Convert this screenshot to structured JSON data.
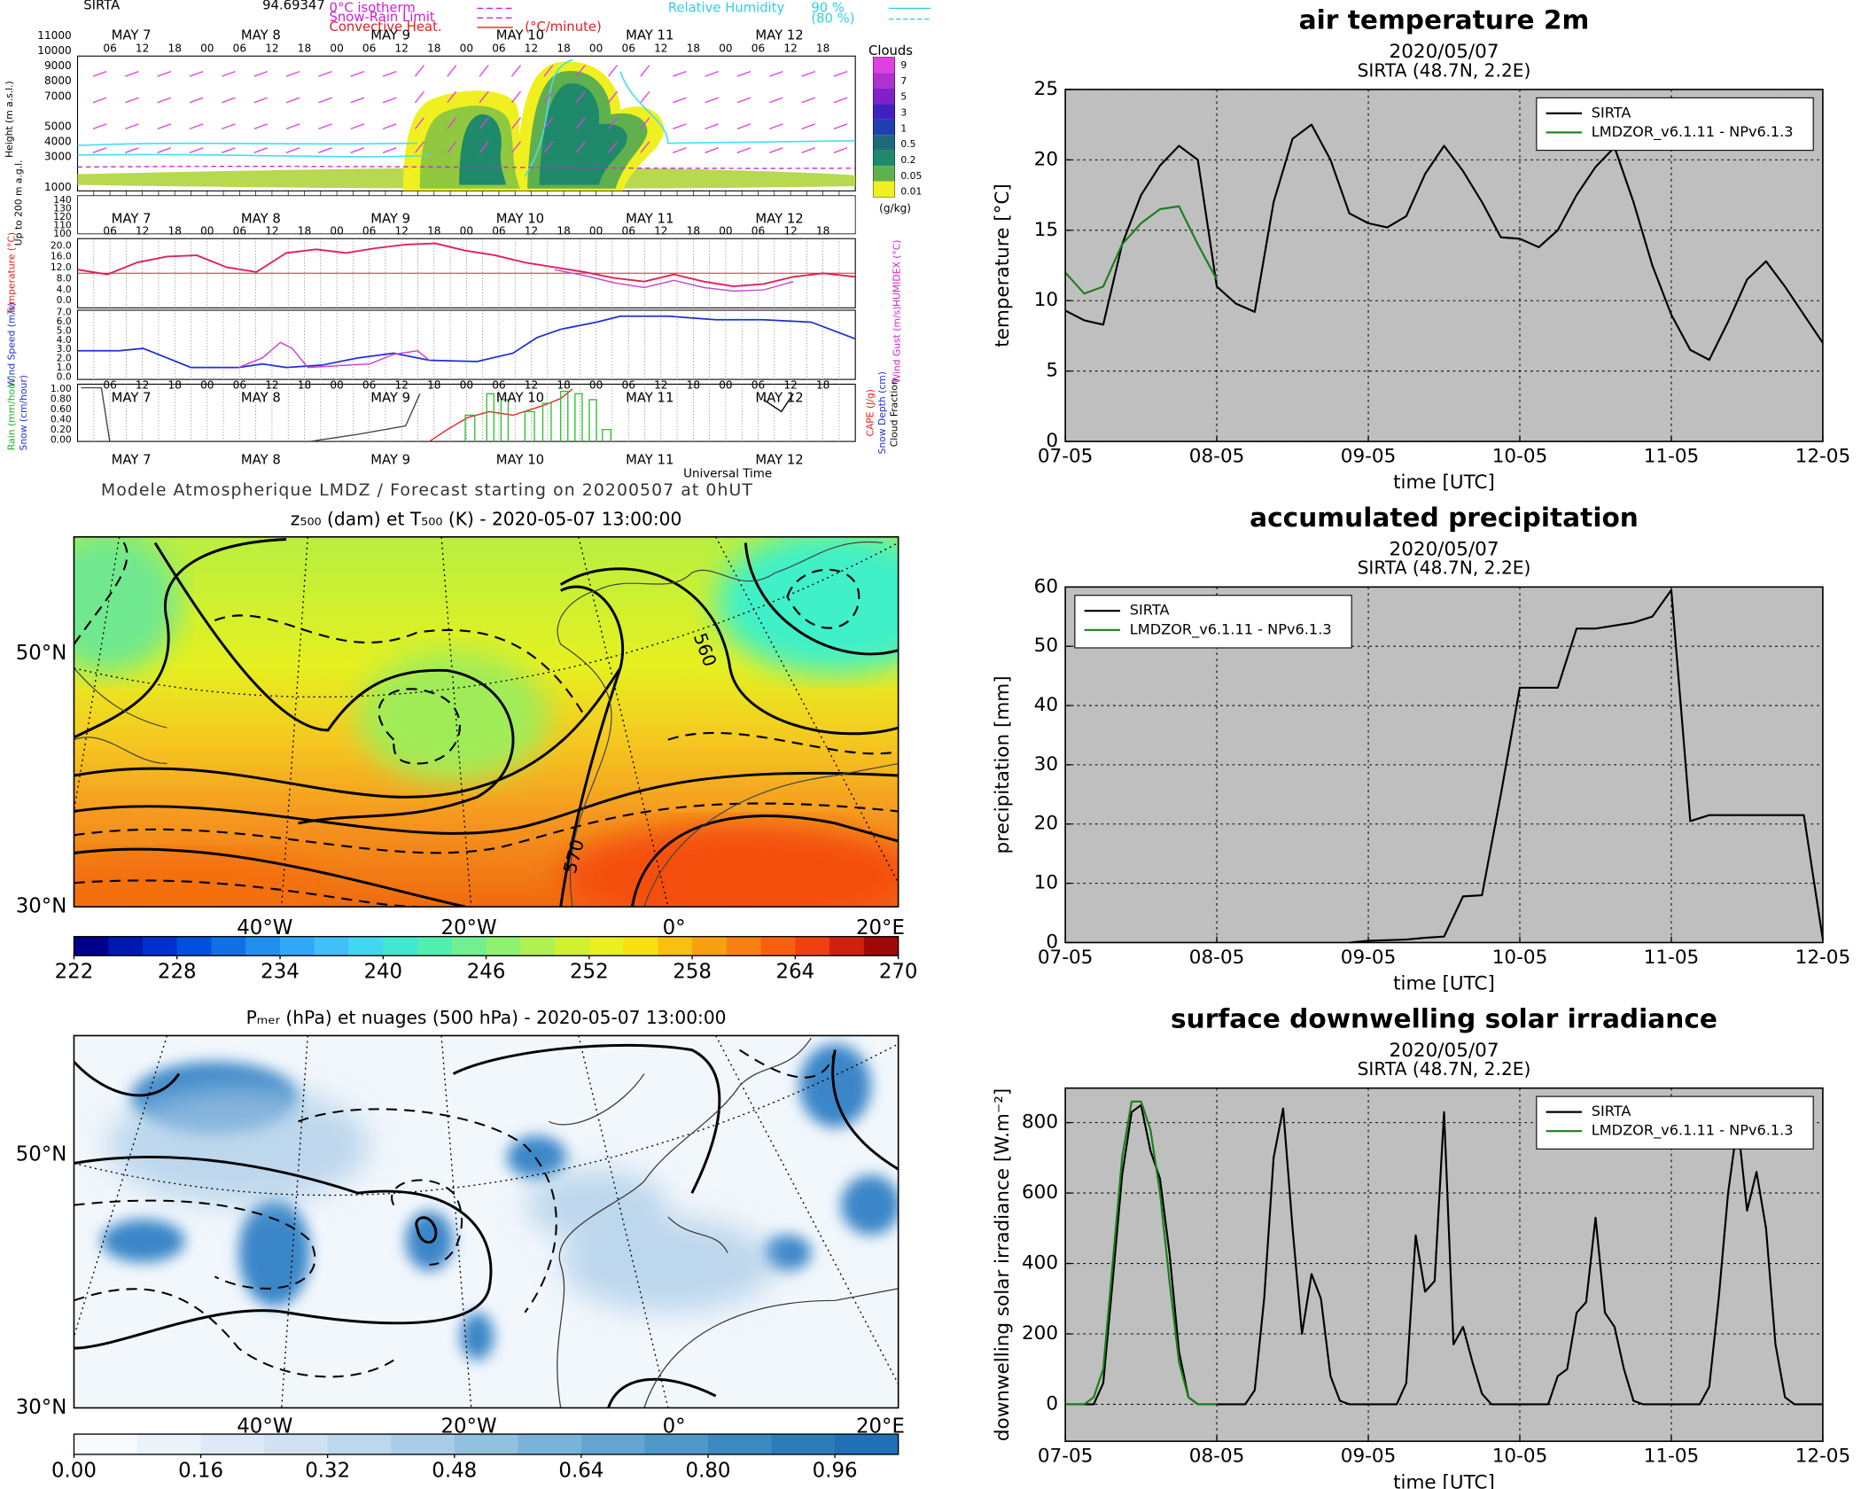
{
  "meteogram": {
    "station": "SIRTA",
    "value": "94.69347",
    "isotherm": "0°C isotherm",
    "snow_rain": "Snow-Rain Limit",
    "convective": "Convective Heat.",
    "convective_unit": "(°C/minute)",
    "humidity": "Relative Humidity",
    "humidity_90": "90 %",
    "humidity_80": "(80 %)",
    "days": [
      "MAY 7",
      "MAY 8",
      "MAY 9",
      "MAY 10",
      "MAY 11",
      "MAY 12"
    ],
    "hours": [
      "06",
      "12",
      "18",
      "00"
    ],
    "height_label": "Height (m a.s.l.)",
    "height_ticks": [
      "11000",
      "10000",
      "9000",
      "8000",
      "7000",
      "5000",
      "4000",
      "3000",
      "1000"
    ],
    "low_label": "Up to 200 m a.g.l.",
    "low_ticks": [
      "140",
      "130",
      "120",
      "110",
      "100"
    ],
    "clouds_title": "Clouds",
    "clouds_ticks": [
      "9",
      "7",
      "5",
      "3",
      "1",
      "0.5",
      "0.2",
      "0.05",
      "0.01"
    ],
    "clouds_unit": "(g/kg)",
    "temp_label": "Temperature (°C)",
    "humidex_label": "HUMIDEX (°C)",
    "temp_ticks": [
      "20.0",
      "16.0",
      "12.0",
      "8.0",
      "4.0",
      "0.0"
    ],
    "wind_label": "Wind Speed (m/s)",
    "gust_label": "Wind Gust (m/s)",
    "wind_ticks": [
      "7.0",
      "6.0",
      "5.0",
      "4.0",
      "3.0",
      "2.0",
      "1.0",
      "0.0"
    ],
    "rain_label": "Rain (mm/hour)",
    "snow_label": "Snow (cm/hour)",
    "cape_label": "CAPE (J/g)",
    "depth_label": "Snow Depth (cm)",
    "cloud_fraction_label": "Cloud Fraction",
    "rain_ticks": [
      "1.00",
      "0.80",
      "0.60",
      "0.40",
      "0.20",
      "0.00"
    ],
    "x_label": "Universal Time",
    "footer": "Modele Atmospherique LMDZ / Forecast starting on 20200507 at 0hUT"
  },
  "maps": [
    {
      "title": "z₅₀₀ (dam) et T₅₀₀ (K) - 2020-05-07 13:00:00",
      "lat_labels": [
        "50°N",
        "30°N"
      ],
      "lon_labels": [
        "40°W",
        "20°W",
        "0°",
        "20°E"
      ],
      "contour_labels": [
        "560",
        "570"
      ],
      "colorbar": {
        "lim": [
          222,
          270
        ],
        "ticks": [
          222,
          228,
          234,
          240,
          246,
          252,
          258,
          264,
          270
        ],
        "colors": [
          "#00008b",
          "#0018b0",
          "#0030d0",
          "#0050e0",
          "#1070e8",
          "#2090f0",
          "#30a8f8",
          "#40c0f8",
          "#40d8f0",
          "#40e8d0",
          "#50f0b0",
          "#70f090",
          "#90f070",
          "#b0f050",
          "#d0f030",
          "#e8f020",
          "#f8e010",
          "#f8c010",
          "#f8a010",
          "#f88010",
          "#f86010",
          "#f04010",
          "#d02010",
          "#a00808"
        ]
      }
    },
    {
      "title": "Pₘₑᵣ (hPa) et nuages (500 hPa) - 2020-05-07 13:00:00",
      "lat_labels": [
        "50°N",
        "30°N"
      ],
      "lon_labels": [
        "40°W",
        "20°W",
        "0°",
        "20°E"
      ],
      "colorbar": {
        "lim": [
          0,
          1.04
        ],
        "ticks": [
          {
            "value": 0,
            "label": "0.00"
          },
          0.16,
          0.32,
          0.48,
          0.64,
          {
            "value": 0.8,
            "label": "0.80"
          },
          0.96
        ],
        "colors": [
          "#f7fbff",
          "#eaf2fa",
          "#dde9f6",
          "#d0e1f2",
          "#bdd7ec",
          "#a9cde6",
          "#92c0df",
          "#7ab3d8",
          "#64a6d1",
          "#4f98ca",
          "#3b8ac2",
          "#2c7cb9",
          "#2070b8"
        ]
      }
    }
  ],
  "chart_data": [
    {
      "type": "line",
      "title": "air temperature 2m",
      "subtitle": "2020/05/07",
      "location": "SIRTA (48.7N, 2.2E)",
      "xlabel": "time [UTC]",
      "ylabel": "temperature [°C]",
      "x": [
        0,
        0.125,
        0.25,
        0.375,
        0.5,
        0.625,
        0.75,
        0.875,
        1,
        1.125,
        1.25,
        1.375,
        1.5,
        1.625,
        1.75,
        1.875,
        2,
        2.125,
        2.25,
        2.375,
        2.5,
        2.625,
        2.75,
        2.875,
        3,
        3.125,
        3.25,
        3.375,
        3.5,
        3.625,
        3.75,
        3.875,
        4,
        4.125,
        4.25,
        4.375,
        4.5,
        4.625,
        4.75,
        4.875,
        5
      ],
      "series": [
        {
          "name": "SIRTA",
          "color": "#000000",
          "values": [
            9.3,
            8.6,
            8.3,
            14,
            17.5,
            19.6,
            21,
            20,
            11,
            9.8,
            9.2,
            17,
            21.5,
            22.5,
            20,
            16.2,
            15.5,
            15.2,
            16,
            19,
            21,
            19.2,
            17,
            14.5,
            14.4,
            13.8,
            15,
            17.5,
            19.5,
            20.9,
            17,
            12.5,
            9,
            6.5,
            5.8,
            8.5,
            11.5,
            12.8,
            11,
            9,
            7
          ]
        },
        {
          "name": "LMDZOR_v6.1.11 - NPv6.1.3",
          "color": "#1a7f1a",
          "values": [
            12,
            10.5,
            11,
            14,
            15.5,
            16.5,
            16.7,
            14,
            11.5,
            null,
            null,
            null,
            null,
            null,
            null,
            null,
            null,
            null,
            null,
            null,
            null,
            null,
            null,
            null,
            null,
            null,
            null,
            null,
            null,
            null,
            null,
            null,
            null,
            null,
            null,
            null,
            null,
            null,
            null,
            null,
            null
          ]
        }
      ],
      "xlim": [
        0,
        5
      ],
      "xticks": [
        {
          "value": 0,
          "label": "07-05"
        },
        {
          "value": 1,
          "label": "08-05"
        },
        {
          "value": 2,
          "label": "09-05"
        },
        {
          "value": 3,
          "label": "10-05"
        },
        {
          "value": 4,
          "label": "11-05"
        },
        {
          "value": 5,
          "label": "12-05"
        }
      ],
      "ylim": [
        0,
        25
      ],
      "yticks": [
        0,
        5,
        10,
        15,
        20,
        25
      ],
      "grid": true,
      "legend": "upper right",
      "background": "#bfbfbf"
    },
    {
      "type": "line",
      "title": "accumulated precipitation",
      "subtitle": "2020/05/07",
      "location": "SIRTA (48.7N, 2.2E)",
      "xlabel": "time [UTC]",
      "ylabel": "precipitation [mm]",
      "x": [
        0,
        0.125,
        0.25,
        0.375,
        0.5,
        0.625,
        0.75,
        0.875,
        1,
        1.125,
        1.25,
        1.375,
        1.5,
        1.625,
        1.75,
        1.875,
        2,
        2.125,
        2.25,
        2.375,
        2.5,
        2.625,
        2.75,
        2.875,
        3,
        3.125,
        3.25,
        3.375,
        3.5,
        3.625,
        3.75,
        3.875,
        4,
        4.125,
        4.25,
        4.375,
        4.5,
        4.625,
        4.75,
        4.875,
        5
      ],
      "series": [
        {
          "name": "SIRTA",
          "color": "#000000",
          "values": [
            null,
            null,
            null,
            null,
            null,
            null,
            null,
            null,
            null,
            null,
            null,
            null,
            null,
            null,
            null,
            0,
            0.3,
            0.4,
            0.5,
            0.8,
            1,
            7.8,
            8,
            25,
            43,
            43,
            43,
            53,
            53,
            53.5,
            54,
            55,
            59.5,
            20.5,
            21.5,
            21.5,
            21.5,
            21.5,
            21.5,
            21.5,
            0.5
          ]
        },
        {
          "name": "LMDZOR_v6.1.11 - NPv6.1.3",
          "color": "#1a7f1a",
          "values": [
            null,
            null,
            null,
            null,
            null,
            null,
            null,
            null,
            null,
            null,
            null,
            null,
            null,
            null,
            null,
            null,
            null,
            null,
            null,
            null,
            null,
            null,
            null,
            null,
            null,
            null,
            null,
            null,
            null,
            null,
            null,
            null,
            null,
            null,
            null,
            null,
            null,
            null,
            null,
            null,
            null
          ]
        }
      ],
      "xlim": [
        0,
        5
      ],
      "xticks": [
        {
          "value": 0,
          "label": "07-05"
        },
        {
          "value": 1,
          "label": "08-05"
        },
        {
          "value": 2,
          "label": "09-05"
        },
        {
          "value": 3,
          "label": "10-05"
        },
        {
          "value": 4,
          "label": "11-05"
        },
        {
          "value": 5,
          "label": "12-05"
        }
      ],
      "ylim": [
        0,
        60
      ],
      "yticks": [
        0,
        10,
        20,
        30,
        40,
        50,
        60
      ],
      "grid": true,
      "legend": "upper left",
      "background": "#bfbfbf"
    },
    {
      "type": "line",
      "title": "surface downwelling solar irradiance",
      "subtitle": "2020/05/07",
      "location": "SIRTA (48.7N, 2.2E)",
      "xlabel": "time [UTC]",
      "ylabel": "downwelling solar irradiance [W.m⁻²]",
      "x": [
        0,
        0.0625,
        0.125,
        0.1875,
        0.25,
        0.3125,
        0.375,
        0.4375,
        0.5,
        0.5625,
        0.625,
        0.6875,
        0.75,
        0.8125,
        0.875,
        0.9375,
        1,
        1.0625,
        1.125,
        1.1875,
        1.25,
        1.3125,
        1.375,
        1.4375,
        1.5,
        1.5625,
        1.625,
        1.6875,
        1.75,
        1.8125,
        1.875,
        1.9375,
        2,
        2.0625,
        2.125,
        2.1875,
        2.25,
        2.3125,
        2.375,
        2.4375,
        2.5,
        2.5625,
        2.625,
        2.6875,
        2.75,
        2.8125,
        2.875,
        2.9375,
        3,
        3.0625,
        3.125,
        3.1875,
        3.25,
        3.3125,
        3.375,
        3.4375,
        3.5,
        3.5625,
        3.625,
        3.6875,
        3.75,
        3.8125,
        3.875,
        3.9375,
        4,
        4.0625,
        4.125,
        4.1875,
        4.25,
        4.3125,
        4.375,
        4.4375,
        4.5,
        4.5625,
        4.625,
        4.6875,
        4.75,
        4.8125,
        4.875,
        4.9375,
        5
      ],
      "series": [
        {
          "name": "SIRTA",
          "color": "#000000",
          "values": [
            0,
            0,
            0,
            0,
            60,
            350,
            650,
            830,
            850,
            720,
            640,
            430,
            150,
            20,
            0,
            0,
            0,
            0,
            0,
            0,
            40,
            300,
            700,
            840,
            500,
            200,
            370,
            300,
            80,
            10,
            0,
            0,
            0,
            0,
            0,
            0,
            60,
            480,
            320,
            350,
            830,
            170,
            220,
            120,
            30,
            0,
            0,
            0,
            0,
            0,
            0,
            0,
            80,
            100,
            260,
            290,
            530,
            260,
            220,
            100,
            10,
            0,
            0,
            0,
            0,
            0,
            0,
            0,
            50,
            300,
            600,
            800,
            550,
            660,
            500,
            170,
            20,
            0,
            0,
            0,
            0
          ]
        },
        {
          "name": "LMDZOR_v6.1.11 - NPv6.1.3",
          "color": "#1a7f1a",
          "values": [
            0,
            0,
            0,
            20,
            100,
            400,
            700,
            860,
            860,
            780,
            600,
            350,
            120,
            20,
            0,
            0,
            0,
            null,
            null,
            null,
            null,
            null,
            null,
            null,
            null,
            null,
            null,
            null,
            null,
            null,
            null,
            null,
            null,
            null,
            null,
            null,
            null,
            null,
            null,
            null,
            null,
            null,
            null,
            null,
            null,
            null,
            null,
            null,
            null,
            null,
            null,
            null,
            null,
            null,
            null,
            null,
            null,
            null,
            null,
            null,
            null,
            null,
            null,
            null,
            null,
            null,
            null,
            null,
            null,
            null,
            null,
            null,
            null,
            null,
            null,
            null,
            null,
            null,
            null,
            null,
            null
          ]
        }
      ],
      "xlim": [
        0,
        5
      ],
      "xticks": [
        {
          "value": 0,
          "label": "07-05"
        },
        {
          "value": 1,
          "label": "08-05"
        },
        {
          "value": 2,
          "label": "09-05"
        },
        {
          "value": 3,
          "label": "10-05"
        },
        {
          "value": 4,
          "label": "11-05"
        },
        {
          "value": 5,
          "label": "12-05"
        }
      ],
      "ylim": [
        -105,
        898
      ],
      "yticks": [
        0,
        200,
        400,
        600,
        800
      ],
      "grid": true,
      "legend": "upper right",
      "background": "#bfbfbf"
    }
  ]
}
